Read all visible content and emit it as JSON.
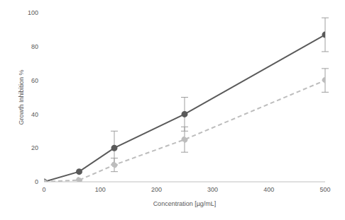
{
  "chart_data": {
    "type": "line",
    "x_label": "Concentration [µg/mL]",
    "y_label": "Growth Inhibition %",
    "x": [
      0,
      62.5,
      125,
      250,
      500
    ],
    "series": [
      {
        "color": "#5a5a5a",
        "line_style": "solid",
        "marker": "circle",
        "values": [
          0,
          6,
          20,
          40,
          87
        ],
        "error": [
          0,
          0,
          10,
          10,
          10
        ]
      },
      {
        "color": "#bdbdbd",
        "line_style": "dashed",
        "marker": "circle",
        "values": [
          0,
          1,
          10,
          25,
          60
        ],
        "error": [
          0,
          0,
          4,
          7.5,
          7
        ]
      }
    ],
    "xlim": [
      0,
      500
    ],
    "xticks": [
      0,
      100,
      200,
      300,
      400,
      500
    ],
    "ylim": [
      0,
      100
    ],
    "yticks": [
      0,
      20,
      40,
      60,
      80,
      100
    ],
    "grid": false
  }
}
